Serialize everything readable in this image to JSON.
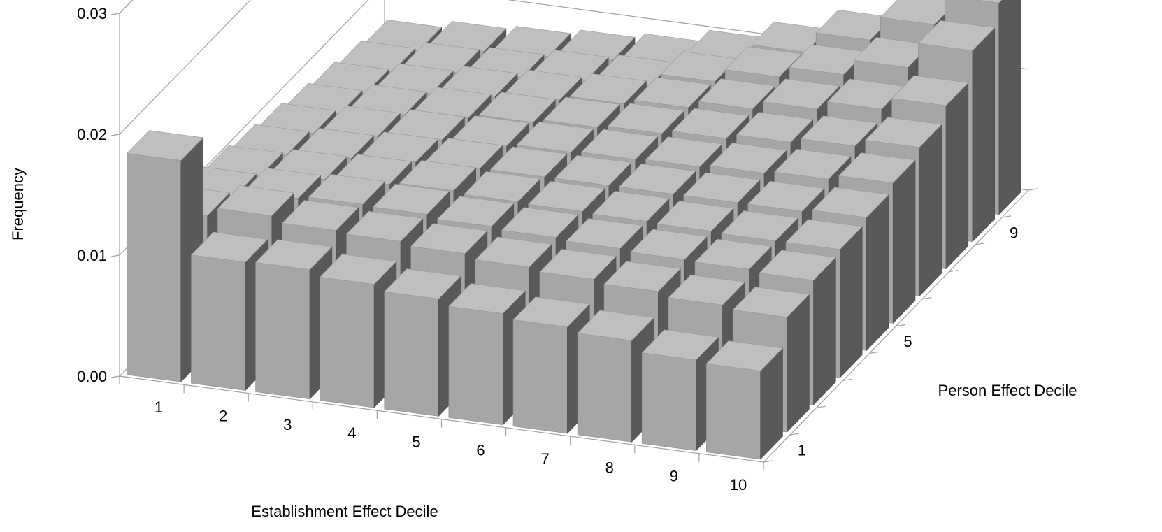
{
  "chart_data": {
    "type": "bar3d",
    "title": "",
    "xlabel": "Establishment Effect Decile",
    "ylabel": "Person Effect Decile",
    "zlabel": "Frequency",
    "x_categories": [
      "1",
      "2",
      "3",
      "4",
      "5",
      "6",
      "7",
      "8",
      "9",
      "10"
    ],
    "y_tick_labels": [
      "1",
      "5",
      "9"
    ],
    "y_levels": 10,
    "z_ticks": [
      "0.00",
      "0.01",
      "0.02",
      "0.03"
    ],
    "zlim": [
      0,
      0.03
    ],
    "colors": {
      "front": "#a6a6a6",
      "top": "#bfbfbf",
      "side": "#595959",
      "axis": "#a0a0a0"
    },
    "values": [
      [
        0.0183,
        0.0106,
        0.0107,
        0.0102,
        0.0097,
        0.0092,
        0.0088,
        0.0084,
        0.0075,
        0.0073
      ],
      [
        0.0115,
        0.0122,
        0.0117,
        0.0115,
        0.0112,
        0.0108,
        0.0105,
        0.0102,
        0.0098,
        0.0095
      ],
      [
        0.0108,
        0.0114,
        0.0116,
        0.0115,
        0.0112,
        0.011,
        0.0108,
        0.0106,
        0.0105,
        0.0103
      ],
      [
        0.0103,
        0.0107,
        0.011,
        0.0112,
        0.011,
        0.0109,
        0.0108,
        0.0107,
        0.0106,
        0.0106
      ],
      [
        0.0098,
        0.0102,
        0.0106,
        0.0108,
        0.0108,
        0.0108,
        0.0108,
        0.0108,
        0.0108,
        0.011
      ],
      [
        0.0093,
        0.0098,
        0.0102,
        0.0104,
        0.0106,
        0.0107,
        0.0108,
        0.011,
        0.0112,
        0.0116
      ],
      [
        0.0087,
        0.0093,
        0.0098,
        0.0101,
        0.0104,
        0.0106,
        0.0109,
        0.0113,
        0.0117,
        0.0123
      ],
      [
        0.0082,
        0.0088,
        0.0093,
        0.0097,
        0.0101,
        0.0105,
        0.0111,
        0.0118,
        0.0125,
        0.0135
      ],
      [
        0.0077,
        0.0083,
        0.0086,
        0.0091,
        0.0094,
        0.0104,
        0.0115,
        0.0124,
        0.0137,
        0.0158
      ],
      [
        0.0072,
        0.0078,
        0.0081,
        0.0085,
        0.0089,
        0.0099,
        0.0113,
        0.013,
        0.015,
        0.0175
      ]
    ]
  }
}
